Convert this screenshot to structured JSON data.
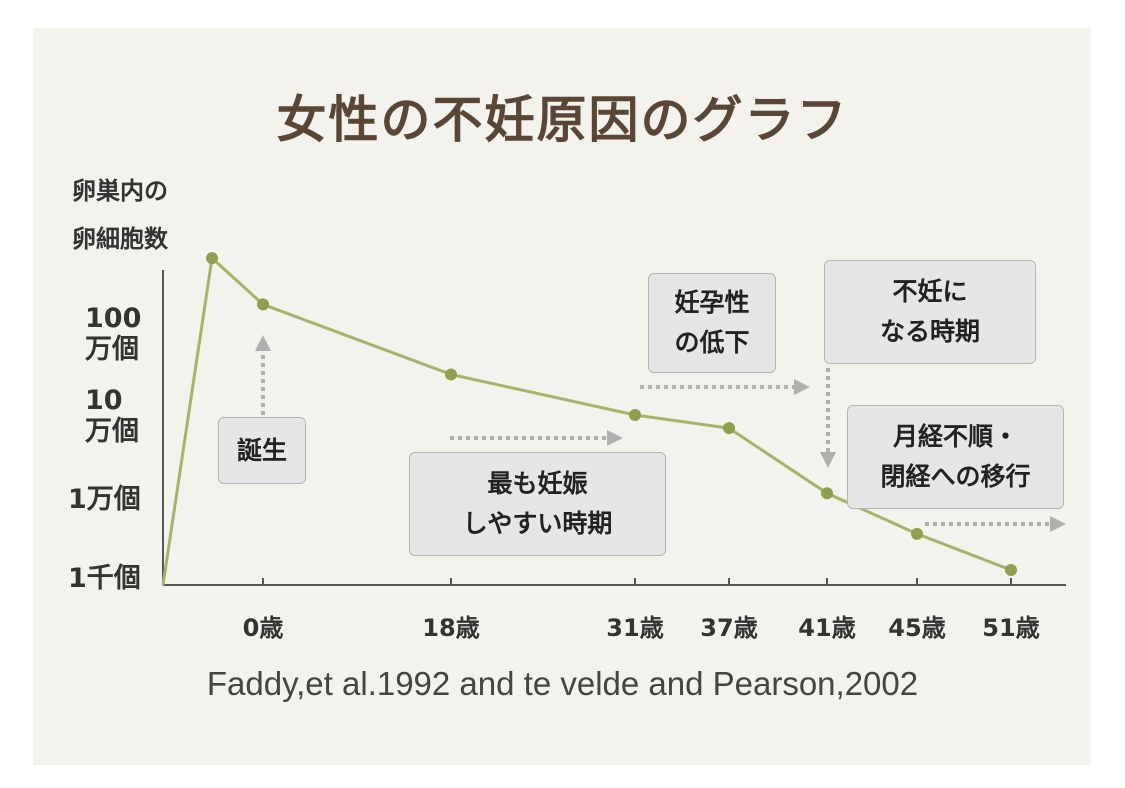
{
  "title": "女性の不妊原因のグラフ",
  "source": "Faddy,et al.1992 and te velde and Pearson,2002",
  "colors": {
    "line": "#a3b56a",
    "point": "#8ea04f",
    "arrow": "#b0b0b0",
    "axis": "#555555",
    "title": "#5a4636"
  },
  "chart_data": {
    "type": "line",
    "ylabel": [
      "卵巣内の",
      "卵細胞数"
    ],
    "yticks": [
      {
        "label": [
          "100",
          "万個"
        ],
        "value": 1000000
      },
      {
        "label": [
          "10",
          "万個"
        ],
        "value": 100000
      },
      {
        "label": [
          "1万個"
        ],
        "value": 10000
      },
      {
        "label": [
          "1千個"
        ],
        "value": 1000
      }
    ],
    "yscale": "log",
    "xticks": [
      "0歳",
      "18歳",
      "31歳",
      "37歳",
      "41歳",
      "45歳",
      "51歳"
    ],
    "series": [
      {
        "points": [
          {
            "x": "origin",
            "y": 1000
          },
          {
            "x": "prenatal peak",
            "y": 7000000
          },
          {
            "x": "0歳",
            "y": 2000000
          },
          {
            "x": "18歳",
            "y": 300000
          },
          {
            "x": "31歳",
            "y": 100000
          },
          {
            "x": "37歳",
            "y": 70000
          },
          {
            "x": "41歳",
            "y": 12000
          },
          {
            "x": "45歳",
            "y": 4000
          },
          {
            "x": "51歳",
            "y": 1500
          }
        ]
      }
    ],
    "annotations": [
      {
        "id": "birth",
        "lines": [
          "誕生"
        ]
      },
      {
        "id": "easy",
        "lines": [
          "最も妊娠",
          "しやすい時期"
        ]
      },
      {
        "id": "decline",
        "lines": [
          "妊孕性",
          "の低下"
        ]
      },
      {
        "id": "infertile",
        "lines": [
          "不妊に",
          "なる時期"
        ]
      },
      {
        "id": "menopause",
        "lines": [
          "月経不順・",
          "閉経への移行"
        ]
      }
    ]
  }
}
